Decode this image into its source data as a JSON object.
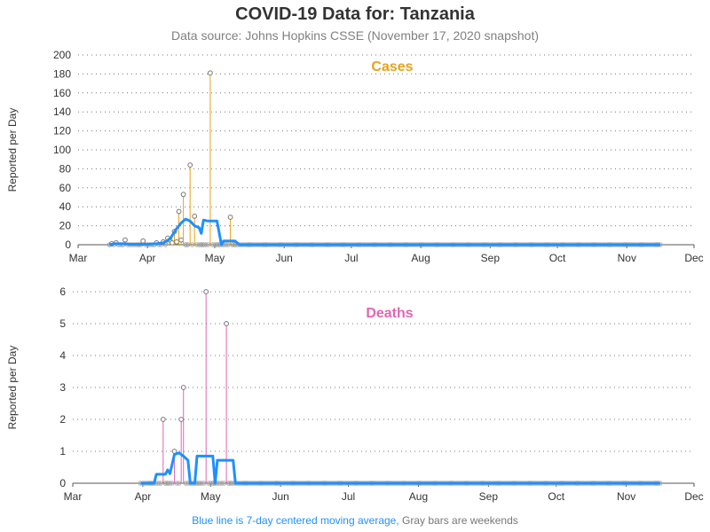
{
  "header": {
    "title": "COVID-19 Data for: Tanzania",
    "subtitle": "Data source: Johns Hopkins CSSE (November 17, 2020 snapshot)"
  },
  "footnote": {
    "blue_text": "Blue line is 7-day centered moving average,",
    "gray_text": "Gray bars are weekends"
  },
  "colors": {
    "cases": "#e8a317",
    "deaths": "#e066b4",
    "moving_average": "#1e90ff",
    "weekend": "#999999"
  },
  "chart_data": [
    {
      "type": "line",
      "title": "Cases",
      "ylabel": "Reported per Day",
      "ylim": [
        0,
        200
      ],
      "yticks": [
        0,
        20,
        40,
        60,
        80,
        100,
        120,
        140,
        160,
        180,
        200
      ],
      "x_tick_labels": [
        "Mar",
        "Apr",
        "May",
        "Jun",
        "Jul",
        "Aug",
        "Sep",
        "Oct",
        "Nov",
        "Dec"
      ],
      "x_range": [
        "2020-03-01",
        "2020-12-01"
      ],
      "grid": "horizontal dotted",
      "nonzero_daily": [
        {
          "date": "2020-03-16",
          "value": 1
        },
        {
          "date": "2020-03-18",
          "value": 2
        },
        {
          "date": "2020-03-22",
          "value": 5
        },
        {
          "date": "2020-03-30",
          "value": 4
        },
        {
          "date": "2020-04-05",
          "value": 2
        },
        {
          "date": "2020-04-08",
          "value": 3
        },
        {
          "date": "2020-04-10",
          "value": 7
        },
        {
          "date": "2020-04-11",
          "value": 5
        },
        {
          "date": "2020-04-12",
          "value": 2
        },
        {
          "date": "2020-04-13",
          "value": 14
        },
        {
          "date": "2020-04-14",
          "value": 3
        },
        {
          "date": "2020-04-15",
          "value": 35
        },
        {
          "date": "2020-04-16",
          "value": 5
        },
        {
          "date": "2020-04-17",
          "value": 53
        },
        {
          "date": "2020-04-20",
          "value": 84
        },
        {
          "date": "2020-04-22",
          "value": 30
        },
        {
          "date": "2020-04-29",
          "value": 181
        },
        {
          "date": "2020-05-08",
          "value": 29
        }
      ],
      "moving_average": [
        {
          "date": "2020-03-15",
          "value": 0
        },
        {
          "date": "2020-03-17",
          "value": 1
        },
        {
          "date": "2020-03-19",
          "value": 1
        },
        {
          "date": "2020-03-21",
          "value": 1
        },
        {
          "date": "2020-03-24",
          "value": 0.5
        },
        {
          "date": "2020-03-28",
          "value": 0.5
        },
        {
          "date": "2020-04-01",
          "value": 0.5
        },
        {
          "date": "2020-04-05",
          "value": 1
        },
        {
          "date": "2020-04-08",
          "value": 2
        },
        {
          "date": "2020-04-11",
          "value": 6
        },
        {
          "date": "2020-04-14",
          "value": 17
        },
        {
          "date": "2020-04-16",
          "value": 23
        },
        {
          "date": "2020-04-18",
          "value": 27
        },
        {
          "date": "2020-04-20",
          "value": 25
        },
        {
          "date": "2020-04-22",
          "value": 20
        },
        {
          "date": "2020-04-24",
          "value": 18
        },
        {
          "date": "2020-04-25",
          "value": 12
        },
        {
          "date": "2020-04-26",
          "value": 26
        },
        {
          "date": "2020-04-28",
          "value": 25
        },
        {
          "date": "2020-05-02",
          "value": 25
        },
        {
          "date": "2020-05-04",
          "value": 0
        },
        {
          "date": "2020-05-05",
          "value": 4
        },
        {
          "date": "2020-05-10",
          "value": 4
        },
        {
          "date": "2020-05-12",
          "value": 0
        },
        {
          "date": "2020-11-16",
          "value": 0
        }
      ],
      "data_end": "2020-11-16"
    },
    {
      "type": "line",
      "title": "Deaths",
      "ylabel": "Reported per Day",
      "ylim": [
        0,
        6
      ],
      "yticks": [
        0,
        1,
        2,
        3,
        4,
        5,
        6
      ],
      "x_tick_labels": [
        "Mar",
        "Apr",
        "May",
        "Jun",
        "Jul",
        "Aug",
        "Sep",
        "Oct",
        "Nov",
        "Dec"
      ],
      "x_range": [
        "2020-03-01",
        "2020-12-01"
      ],
      "grid": "horizontal dotted",
      "nonzero_daily": [
        {
          "date": "2020-04-10",
          "value": 2
        },
        {
          "date": "2020-04-15",
          "value": 1
        },
        {
          "date": "2020-04-18",
          "value": 2
        },
        {
          "date": "2020-04-19",
          "value": 3
        },
        {
          "date": "2020-04-29",
          "value": 6
        },
        {
          "date": "2020-05-08",
          "value": 5
        }
      ],
      "moving_average": [
        {
          "date": "2020-03-31",
          "value": 0
        },
        {
          "date": "2020-04-06",
          "value": 0
        },
        {
          "date": "2020-04-07",
          "value": 0.28
        },
        {
          "date": "2020-04-11",
          "value": 0.28
        },
        {
          "date": "2020-04-12",
          "value": 0.42
        },
        {
          "date": "2020-04-13",
          "value": 0.3
        },
        {
          "date": "2020-04-15",
          "value": 0.9
        },
        {
          "date": "2020-04-17",
          "value": 0.95
        },
        {
          "date": "2020-04-19",
          "value": 0.85
        },
        {
          "date": "2020-04-21",
          "value": 0.72
        },
        {
          "date": "2020-04-22",
          "value": 0
        },
        {
          "date": "2020-04-24",
          "value": 0
        },
        {
          "date": "2020-04-25",
          "value": 0.85
        },
        {
          "date": "2020-05-02",
          "value": 0.85
        },
        {
          "date": "2020-05-03",
          "value": 0
        },
        {
          "date": "2020-05-04",
          "value": 0.72
        },
        {
          "date": "2020-05-11",
          "value": 0.72
        },
        {
          "date": "2020-05-12",
          "value": 0
        },
        {
          "date": "2020-11-16",
          "value": 0
        }
      ],
      "data_end": "2020-11-16"
    }
  ]
}
